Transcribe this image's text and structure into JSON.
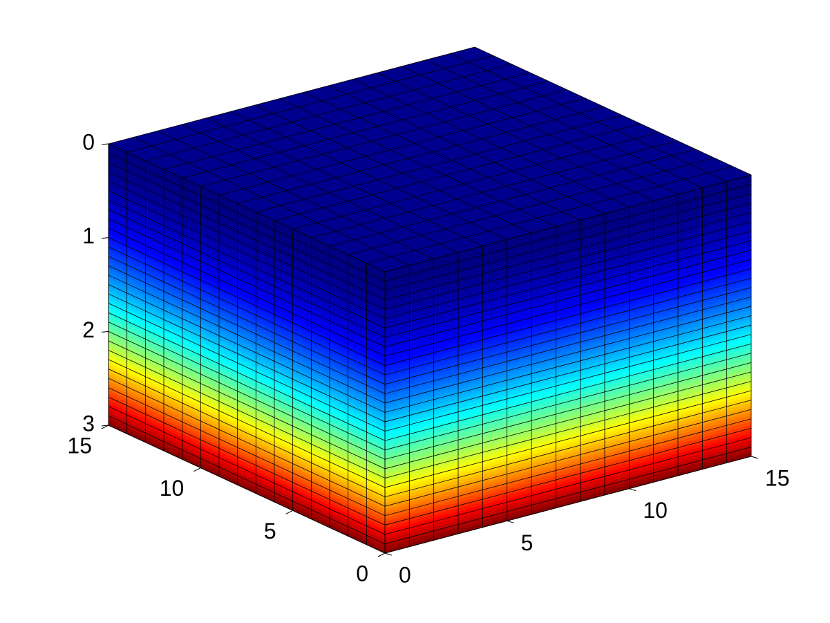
{
  "chart_data": {
    "type": "cube3d",
    "colormap": "jet",
    "xlim": [
      0,
      15
    ],
    "xticks": [
      0,
      5,
      10,
      15
    ],
    "ylim": [
      0,
      15
    ],
    "yticks": [
      0,
      5,
      10,
      15
    ],
    "zlim": [
      0,
      3
    ],
    "zticks": [
      0,
      1,
      2,
      3
    ],
    "zreverse": true,
    "grid": true
  }
}
